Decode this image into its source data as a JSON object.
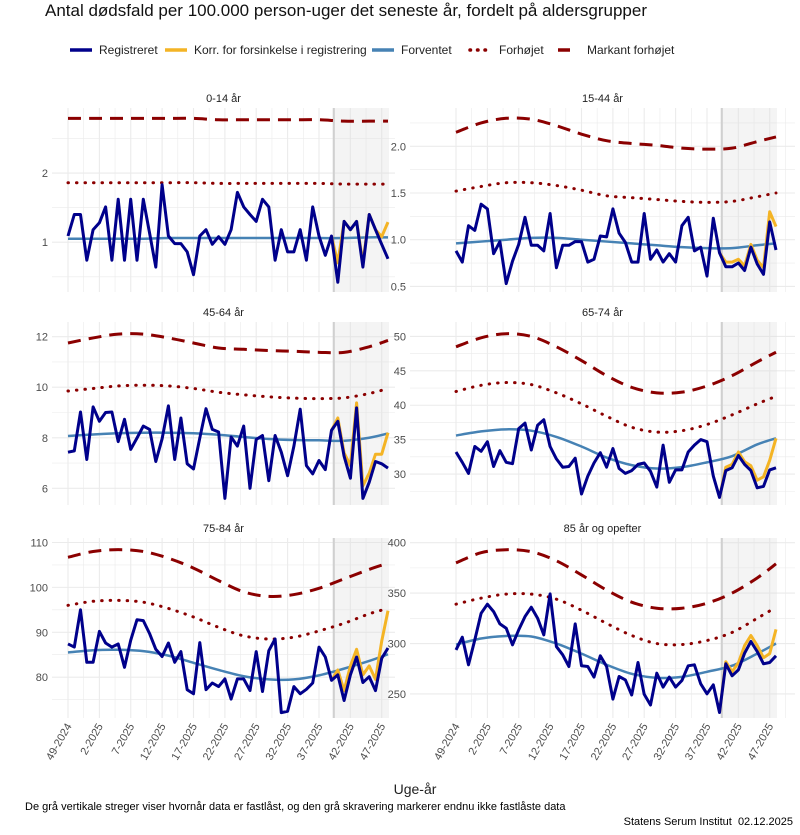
{
  "title": "Antal dødsfald per 100.000 person-uger det seneste år, fordelt på aldersgrupper",
  "legend": [
    {
      "label": "Registreret",
      "color": "#00008B",
      "style": "solid"
    },
    {
      "label": "Korr. for forsinkelse i registrering",
      "color": "#F4B425",
      "style": "solid"
    },
    {
      "label": "Forventet",
      "color": "#4682B4",
      "style": "solid"
    },
    {
      "label": "Forhøjet",
      "color": "#8B0000",
      "style": "dotted"
    },
    {
      "label": "Markant forhøjet",
      "color": "#8B0000",
      "style": "dashed"
    }
  ],
  "xlabel": "Uge-år",
  "caption": "De grå vertikale streger viser hvornår data er fastlåst, og den grå skravering markerer endnu ikke fastlåste data",
  "source": "Statens Serum Institut  02.12.2025",
  "chart_data": {
    "type": "line",
    "facets": "3x2",
    "grid": true,
    "first_week": "49-2024",
    "last_week": "48-2025",
    "xticks": [
      "49-2024",
      "2-2025",
      "7-2025",
      "12-2025",
      "17-2025",
      "22-2025",
      "27-2025",
      "32-2025",
      "37-2025",
      "42-2025",
      "47-2025"
    ],
    "not_locked_from_week": "39-2025",
    "smooth_weeks": [
      "49-2024",
      "1-2025",
      "5-2025",
      "9-2025",
      "13-2025",
      "17-2025",
      "21-2025",
      "25-2025",
      "29-2025",
      "33-2025",
      "37-2025",
      "41-2025",
      "45-2025",
      "48-2025"
    ],
    "panels": [
      {
        "title": "0-14 år",
        "ylim": [
          0.28,
          2.94
        ],
        "yticks": [
          1,
          2
        ],
        "registered": [
          1.09,
          1.4,
          1.4,
          0.74,
          1.18,
          1.28,
          1.51,
          0.74,
          1.62,
          0.74,
          1.62,
          0.74,
          1.62,
          1.13,
          0.64,
          1.83,
          1.09,
          0.98,
          0.98,
          0.86,
          0.53,
          1.09,
          1.18,
          0.97,
          1.08,
          0.97,
          1.18,
          1.72,
          1.51,
          1.4,
          1.3,
          1.62,
          1.51,
          0.74,
          1.18,
          0.86,
          0.86,
          1.18,
          0.74,
          1.51,
          1.09,
          0.81,
          1.09,
          0.42,
          1.3,
          1.18,
          1.3,
          0.64,
          1.4,
          1.18,
          0.97,
          0.76
        ],
        "corrected": [
          1.09,
          0.7,
          1.3,
          1.18,
          1.3,
          0.7,
          1.4,
          1.18,
          1.08,
          1.29
        ],
        "expected": [
          1.05,
          1.05,
          1.05,
          1.05,
          1.06,
          1.06,
          1.06,
          1.06,
          1.06,
          1.06,
          1.06,
          1.06,
          1.07,
          1.07
        ],
        "elevated": [
          1.86,
          1.86,
          1.86,
          1.86,
          1.86,
          1.86,
          1.85,
          1.85,
          1.85,
          1.85,
          1.85,
          1.84,
          1.84,
          1.84
        ],
        "markedly_elevated": [
          2.79,
          2.79,
          2.79,
          2.79,
          2.79,
          2.79,
          2.77,
          2.77,
          2.77,
          2.77,
          2.77,
          2.75,
          2.75,
          2.75
        ]
      },
      {
        "title": "15-44 år",
        "ylim": [
          0.44,
          2.41
        ],
        "yticks": [
          0.5,
          1.0,
          1.5,
          2.0
        ],
        "registered": [
          0.88,
          0.76,
          1.15,
          1.1,
          1.38,
          1.33,
          0.85,
          0.98,
          0.53,
          0.77,
          0.95,
          1.24,
          0.94,
          0.94,
          0.88,
          1.28,
          0.7,
          0.94,
          0.94,
          0.98,
          0.98,
          0.76,
          0.79,
          1.04,
          1.03,
          1.33,
          1.07,
          0.97,
          0.76,
          0.76,
          1.28,
          0.79,
          0.89,
          0.76,
          0.85,
          0.76,
          1.15,
          1.24,
          0.88,
          0.92,
          0.61,
          1.23,
          0.86,
          0.71,
          0.71,
          0.75,
          0.67,
          0.92,
          0.74,
          0.63,
          1.19,
          0.89
        ],
        "corrected": [
          0.86,
          0.76,
          0.76,
          0.79,
          0.72,
          0.95,
          0.78,
          0.7,
          1.3,
          1.14
        ],
        "expected": [
          0.96,
          0.98,
          1.0,
          1.02,
          1.02,
          1.0,
          0.98,
          0.96,
          0.94,
          0.92,
          0.91,
          0.91,
          0.94,
          0.96
        ],
        "elevated": [
          1.52,
          1.57,
          1.61,
          1.61,
          1.58,
          1.53,
          1.47,
          1.45,
          1.43,
          1.41,
          1.4,
          1.41,
          1.46,
          1.5
        ],
        "markedly_elevated": [
          2.15,
          2.25,
          2.3,
          2.29,
          2.22,
          2.13,
          2.06,
          2.03,
          2.01,
          1.98,
          1.97,
          1.98,
          2.05,
          2.1
        ]
      },
      {
        "title": "45-64 år",
        "ylim": [
          5.34,
          12.58
        ],
        "yticks": [
          6,
          8,
          10,
          12
        ],
        "registered": [
          7.43,
          7.48,
          9.02,
          7.14,
          9.22,
          8.65,
          9.0,
          9.02,
          7.85,
          8.73,
          7.54,
          7.99,
          8.46,
          8.33,
          7.06,
          7.96,
          9.26,
          7.14,
          8.78,
          6.97,
          6.77,
          7.99,
          9.15,
          8.33,
          8.23,
          5.6,
          8.03,
          7.67,
          8.46,
          6.0,
          7.93,
          8.09,
          6.3,
          8.09,
          7.43,
          6.5,
          7.67,
          9.13,
          6.9,
          6.57,
          7.1,
          6.74,
          8.29,
          8.65,
          7.27,
          6.4,
          9.18,
          5.6,
          6.24,
          7.06,
          6.97,
          6.8
        ],
        "corrected": [
          8.29,
          8.78,
          7.4,
          6.9,
          9.38,
          6.1,
          6.6,
          7.35,
          7.35,
          8.2
        ],
        "expected": [
          8.07,
          8.13,
          8.18,
          8.2,
          8.2,
          8.18,
          8.12,
          8.03,
          7.95,
          7.91,
          7.9,
          7.88,
          8.0,
          8.17
        ],
        "elevated": [
          9.85,
          9.95,
          10.05,
          10.08,
          10.05,
          9.95,
          9.8,
          9.7,
          9.62,
          9.57,
          9.55,
          9.58,
          9.75,
          9.95
        ],
        "markedly_elevated": [
          11.75,
          11.95,
          12.1,
          12.1,
          11.95,
          11.75,
          11.55,
          11.5,
          11.45,
          11.42,
          11.38,
          11.38,
          11.6,
          11.85
        ]
      },
      {
        "title": "65-74 år",
        "ylim": [
          25.5,
          52.1
        ],
        "yticks": [
          30,
          35,
          40,
          45,
          50
        ],
        "registered": [
          33.2,
          31.7,
          30.1,
          34.0,
          33.3,
          34.7,
          31.1,
          33.4,
          31.7,
          31.5,
          36.6,
          37.4,
          33.5,
          37.1,
          37.9,
          34.0,
          32.2,
          31.0,
          31.1,
          32.3,
          27.1,
          29.7,
          31.6,
          33.1,
          31.0,
          33.7,
          30.8,
          30.1,
          30.5,
          31.4,
          31.6,
          30.4,
          28.1,
          34.2,
          28.8,
          30.6,
          30.6,
          33.2,
          34.2,
          35.0,
          34.7,
          29.7,
          26.6,
          30.5,
          30.9,
          32.7,
          31.4,
          30.5,
          28.0,
          28.2,
          30.6,
          30.9
        ],
        "corrected": [
          26.6,
          31.0,
          31.4,
          33.2,
          31.8,
          31.2,
          29.1,
          29.6,
          32.0,
          35.2
        ],
        "expected": [
          35.6,
          36.2,
          36.5,
          36.3,
          35.4,
          34.0,
          32.4,
          31.3,
          30.8,
          31.0,
          31.7,
          32.6,
          34.3,
          35.2
        ],
        "elevated": [
          42.0,
          42.9,
          43.3,
          43.0,
          41.8,
          40.2,
          38.4,
          36.8,
          36.1,
          36.3,
          37.2,
          38.6,
          40.2,
          41.3
        ],
        "markedly_elevated": [
          48.5,
          49.8,
          50.4,
          50.0,
          48.5,
          46.5,
          44.3,
          42.6,
          41.8,
          41.9,
          42.8,
          44.3,
          46.3,
          47.7
        ]
      },
      {
        "title": "75-84 år",
        "ylim": [
          70.9,
          111.0
        ],
        "yticks": [
          80,
          90,
          100,
          110
        ],
        "registered": [
          87.4,
          86.7,
          95.0,
          83.3,
          83.3,
          90.2,
          87.6,
          86.7,
          87.4,
          82.2,
          88.2,
          92.8,
          92.6,
          89.7,
          86.2,
          84.6,
          87.6,
          83.3,
          85.7,
          77.2,
          76.3,
          87.7,
          77.2,
          78.7,
          77.9,
          79.6,
          75.1,
          79.6,
          79.6,
          77.0,
          85.7,
          76.8,
          85.9,
          88.5,
          72.1,
          72.4,
          77.9,
          76.3,
          77.3,
          78.7,
          86.7,
          84.5,
          79.3,
          80.5,
          74.8,
          80.5,
          84.5,
          78.8,
          80.1,
          77.0,
          84.2,
          86.5
        ],
        "corrected": [
          79.3,
          81.6,
          77.0,
          82.5,
          86.2,
          80.5,
          82.5,
          79.5,
          88.0,
          94.8
        ],
        "expected": [
          85.5,
          86.0,
          86.1,
          85.8,
          84.8,
          83.2,
          81.6,
          80.2,
          79.5,
          79.5,
          80.4,
          81.9,
          83.6,
          85.1
        ],
        "elevated": [
          96.0,
          96.9,
          97.1,
          96.7,
          95.3,
          93.4,
          91.1,
          89.2,
          88.5,
          88.9,
          90.3,
          92.0,
          94.1,
          95.3
        ],
        "markedly_elevated": [
          106.7,
          108.0,
          108.4,
          108.0,
          106.5,
          104.3,
          101.5,
          99.0,
          98.0,
          98.4,
          99.8,
          101.9,
          104.0,
          105.4
        ]
      },
      {
        "title": "85 år og opefter",
        "ylim": [
          226.2,
          404.6
        ],
        "yticks": [
          250,
          300,
          350,
          400
        ],
        "registered": [
          293.7,
          306.3,
          278.9,
          303.6,
          330.0,
          339.0,
          331.7,
          319.5,
          315.2,
          298.7,
          313.5,
          326.7,
          336.0,
          325.1,
          308.6,
          349.2,
          297.0,
          288.8,
          277.2,
          319.5,
          277.9,
          277.2,
          266.7,
          287.8,
          277.2,
          244.9,
          267.3,
          264.0,
          249.0,
          281.2,
          249.7,
          239.1,
          270.6,
          256.8,
          266.7,
          256.8,
          263.4,
          277.9,
          278.9,
          260.1,
          250.2,
          259.1,
          231.7,
          279.9,
          268.0,
          273.9,
          290.4,
          302.0,
          292.1,
          279.9,
          281.2,
          287.8
        ],
        "corrected": [
          231.7,
          282,
          272,
          281,
          298,
          308,
          298,
          286,
          290,
          314
        ],
        "expected": [
          299,
          305,
          307.5,
          307,
          300,
          290,
          279,
          270,
          266,
          267,
          272,
          278,
          290,
          300
        ],
        "elevated": [
          339,
          345,
          349,
          349,
          344,
          333,
          320,
          308,
          300,
          299,
          303,
          311,
          325,
          336
        ],
        "markedly_elevated": [
          380,
          390,
          393,
          391,
          382,
          368,
          353,
          341,
          335,
          335,
          340,
          350,
          365,
          379
        ]
      }
    ]
  }
}
